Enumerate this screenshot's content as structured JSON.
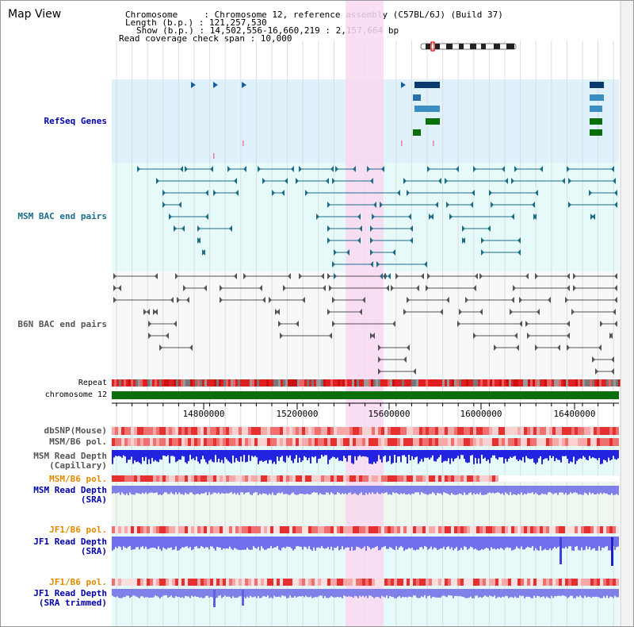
{
  "app": {
    "title": "Map View"
  },
  "info": {
    "chromosome": "Chromosome     : Chromosome 12, reference assembly (C57BL/6J) (Build 37)",
    "length": "Length (b.p.) : 121,257,530",
    "show": "Show (b.p.) : 14,502,556-16,660,219 : 2,157,664 bp",
    "coverage": "Read coverage check span : 10,000"
  },
  "tracks": {
    "refseq": "RefSeq Genes",
    "msm_bac": "MSM BAC end pairs",
    "b6n_bac": "B6N BAC end pairs",
    "repeat": "Repeat",
    "chromosome": "chromosome 12",
    "dbsnp": "dbSNP(Mouse)",
    "msm_b6_pol": "MSM/B6 pol.",
    "msm_depth_cap_1": "MSM Read Depth",
    "msm_depth_cap_2": "(Capillary)",
    "msm_b6_pol2": "MSM/B6 pol.",
    "msm_depth_sra_1": "MSM Read Depth",
    "msm_depth_sra_2": "(SRA)",
    "jf1_b6_pol": "JF1/B6 pol.",
    "jf1_depth_sra_1": "JF1 Read Depth",
    "jf1_depth_sra_2": "(SRA)",
    "jf1_b6_pol2": "JF1/B6 pol.",
    "jf1_depth_trim_1": "JF1 Read Depth",
    "jf1_depth_trim_2": "(SRA trimmed)"
  },
  "axis": {
    "ticks": [
      "14800000",
      "15200000",
      "15600000",
      "16000000",
      "16400000"
    ]
  },
  "colors": {
    "refseq_bg": "#dff1fa",
    "msm_bg": "#e6fafa",
    "b6n_bg": "#f6f8fa",
    "highlight": "#f9d8f1",
    "chrom_bar": "#0a6e0a",
    "label_blue": "#0000aa",
    "label_orange": "#e08a00",
    "msm_line": "#1a6e8a",
    "b6n_line": "#555555"
  }
}
